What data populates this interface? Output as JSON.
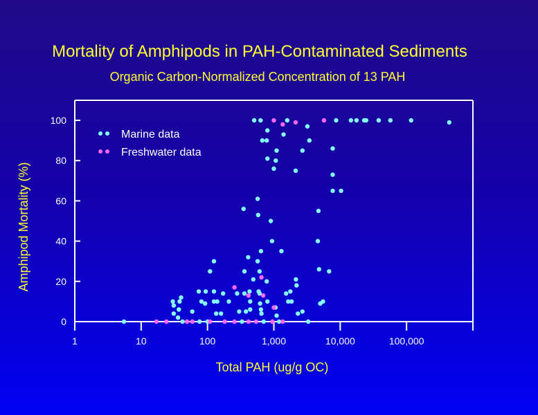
{
  "chart_data": {
    "type": "scatter",
    "title": "Mortality of Amphipods in PAH-Contaminated Sediments",
    "subtitle": "Organic Carbon-Normalized Concentration of 13 PAH",
    "xlabel": "Total PAH (ug/g OC)",
    "ylabel": "Amphipod Mortality (%)",
    "x_scale": "log",
    "xlim": [
      1,
      1000000
    ],
    "ylim": [
      0,
      110
    ],
    "x_ticks": [
      1,
      10,
      100,
      1000,
      10000,
      100000,
      1000000
    ],
    "x_tick_labels": [
      "1",
      "10",
      "100",
      "1,000",
      "10,000",
      "100,000",
      ""
    ],
    "y_ticks": [
      0,
      20,
      40,
      60,
      80,
      100
    ],
    "y_tick_labels": [
      "0",
      "20",
      "40",
      "60",
      "80",
      "100"
    ],
    "grid": false,
    "legend_position": "top-left",
    "colors": {
      "title": "#ffff33",
      "axis": "#ffffff",
      "legend_text": "#ffffff",
      "marine": "#88ffff",
      "freshwater": "#ff66ff"
    },
    "series": [
      {
        "name": "Marine data",
        "x": [
          5.5,
          30,
          31,
          31,
          37,
          38,
          40,
          36,
          42,
          59,
          74,
          81,
          94,
          92,
          76,
          109,
          125,
          125,
          125,
          140,
          135,
          160,
          172,
          210,
          100,
          280,
          300,
          330,
          350,
          360,
          360,
          380,
          410,
          430,
          440,
          440,
          490,
          570,
          570,
          580,
          610,
          590,
          610,
          620,
          640,
          650,
          640,
          780,
          800,
          900,
          940,
          1060,
          1100,
          1300,
          1530,
          1650,
          1850,
          1770,
          2150,
          2200,
          2300,
          2700,
          3300,
          4700,
          4600,
          4800,
          5000,
          5500,
          6800,
          7700,
          7700,
          7700,
          10300,
          505,
          630,
          1590,
          8700,
          14500,
          17600,
          23000,
          24600,
          38000,
          57000,
          117000,
          440000,
          3200,
          800,
          1400,
          670,
          780,
          3430,
          1100,
          2700,
          800,
          1070,
          1000,
          2130,
          700,
          1200
        ],
        "y": [
          0,
          10,
          8,
          4,
          6,
          10,
          12,
          2,
          0,
          5,
          15,
          10,
          15,
          9,
          0,
          25,
          30,
          15,
          10,
          10,
          4,
          4,
          14,
          10,
          0,
          14,
          5,
          0,
          56,
          25,
          14,
          5,
          32,
          15,
          10,
          6,
          21,
          61,
          30,
          53,
          25,
          15,
          14,
          9,
          6,
          4,
          35,
          20,
          10,
          50,
          40,
          7,
          3,
          35,
          14,
          10,
          10,
          15,
          21,
          18,
          4,
          5,
          0,
          55,
          40,
          26,
          9,
          10,
          25,
          86,
          73,
          65,
          65,
          100,
          100,
          100,
          100,
          100,
          100,
          100,
          100,
          100,
          100,
          100,
          99,
          97,
          95,
          93,
          90,
          90,
          90,
          85,
          85,
          81,
          80,
          76,
          75,
          0,
          0
        ]
      },
      {
        "name": "Freshwater data",
        "x": [
          17,
          24,
          49,
          59,
          109,
          182,
          255,
          255,
          415,
          415,
          540,
          650,
          690,
          950,
          1000,
          1360,
          1000,
          1360,
          2130,
          5700
        ],
        "y": [
          0,
          0,
          0,
          0,
          0,
          0,
          0,
          17,
          13,
          0,
          0,
          22,
          13,
          0,
          7,
          0,
          100,
          98,
          99,
          100
        ]
      }
    ]
  }
}
